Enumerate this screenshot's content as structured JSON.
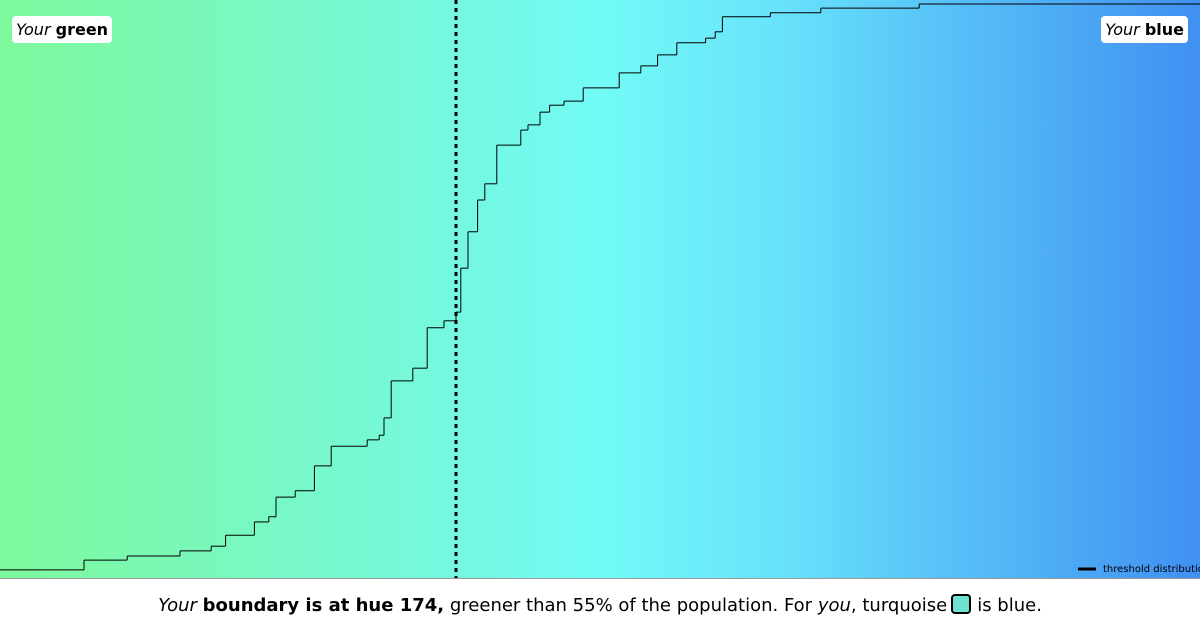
{
  "chart_data": {
    "type": "step",
    "label_left": {
      "prefix": "Your",
      "word": "green"
    },
    "label_right": {
      "prefix": "Your",
      "word": "blue"
    },
    "x": [
      155,
      158.5,
      160.3,
      162.5,
      163.8,
      164.4,
      165.6,
      166.2,
      166.5,
      167.3,
      168.1,
      168.8,
      170.3,
      170.8,
      171.0,
      171.3,
      172.2,
      172.8,
      173.5,
      174.0,
      174.2,
      174.5,
      174.9,
      175.2,
      175.7,
      176.7,
      177.0,
      177.5,
      177.9,
      178.5,
      179.3,
      180.8,
      181.7,
      182.4,
      183.2,
      184.4,
      184.8,
      185.1,
      187.1,
      189.2,
      193.3
    ],
    "series": [
      {
        "name": "threshold distribution",
        "color": "#000000",
        "values": [
          1.4,
          3.1,
          3.8,
          4.7,
          5.5,
          7.4,
          9.7,
          10.6,
          14.0,
          15.1,
          19.4,
          22.8,
          23.9,
          24.7,
          27.7,
          34.1,
          36.3,
          43.3,
          44.5,
          46.0,
          53.6,
          59.9,
          65.4,
          68.2,
          74.9,
          77.5,
          78.4,
          80.6,
          81.8,
          82.5,
          84.8,
          87.4,
          88.6,
          90.5,
          92.6,
          93.4,
          94.5,
          97.1,
          97.8,
          98.6,
          99.3
        ]
      }
    ],
    "xlim": [
      155,
      205
    ],
    "ylim": [
      0,
      100
    ],
    "boundary": 174,
    "legend": "bottom-right",
    "caption": {
      "part1": "Your",
      "part2": "boundary is at hue 174,",
      "part3": "greener than 55% of the population. For",
      "part4": "you",
      "part5": ", turquoise",
      "part6": "is blue."
    }
  }
}
